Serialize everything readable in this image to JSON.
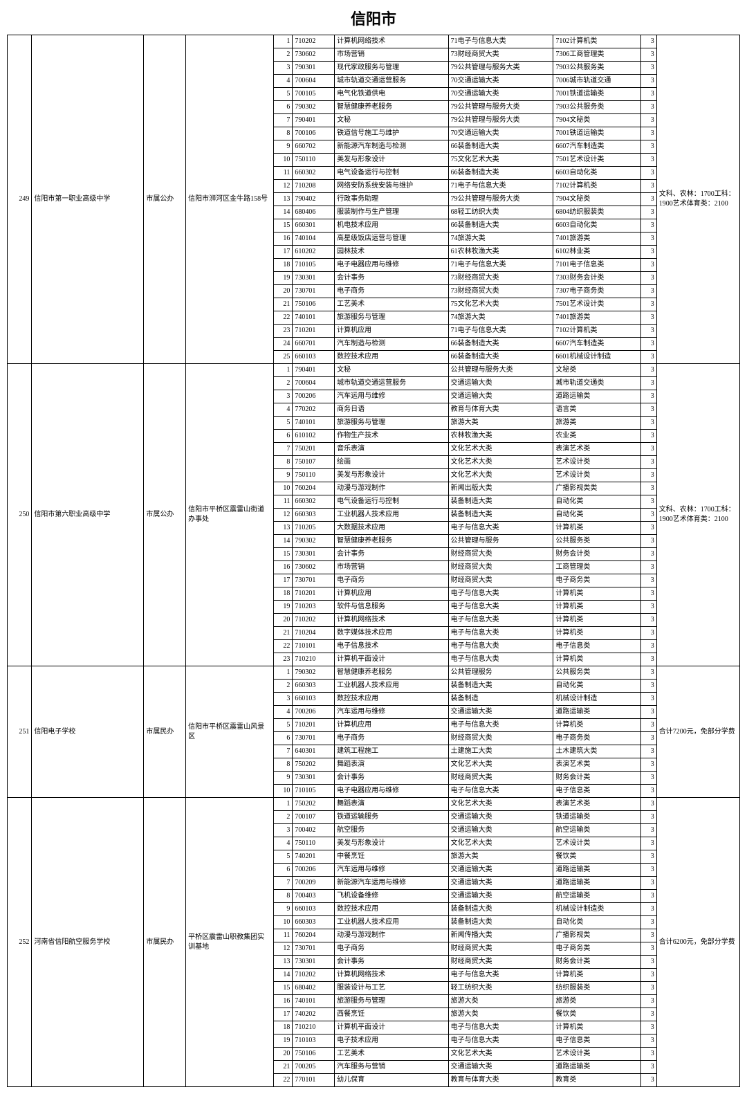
{
  "title": "信阳市",
  "schools": [
    {
      "idx": "249",
      "name": "信阳市第一职业高级中学",
      "type": "市属公办",
      "address": "信阳市浉河区金牛路158号",
      "notes": "文科、农林：1700工科：1900艺术体育类：2100",
      "rows": [
        [
          "1",
          "710202",
          "计算机网络技术",
          "71电子与信息大类",
          "7102计算机类",
          "3"
        ],
        [
          "2",
          "730602",
          "市场营销",
          "73财经商贸大类",
          "7306工商管理类",
          "3"
        ],
        [
          "3",
          "790301",
          "现代家政服务与管理",
          "79公共管理与服务大类",
          "7903公共服务类",
          "3"
        ],
        [
          "4",
          "700604",
          "城市轨道交通运营服务",
          "70交通运输大类",
          "7006城市轨道交通",
          "3"
        ],
        [
          "5",
          "700105",
          "电气化铁道供电",
          "70交通运输大类",
          "7001铁道运输类",
          "3"
        ],
        [
          "6",
          "790302",
          "智慧健康养老服务",
          "79公共管理与服务大类",
          "7903公共服务类",
          "3"
        ],
        [
          "7",
          "790401",
          "文秘",
          "79公共管理与服务大类",
          "7904文秘类",
          "3"
        ],
        [
          "8",
          "700106",
          "铁道信号施工与维护",
          "70交通运输大类",
          "7001铁道运输类",
          "3"
        ],
        [
          "9",
          "660702",
          "新能源汽车制造与检测",
          "66装备制造大类",
          "6607汽车制造类",
          "3"
        ],
        [
          "10",
          "750110",
          "美发与形象设计",
          "75文化艺术大类",
          "7501艺术设计类",
          "3"
        ],
        [
          "11",
          "660302",
          "电气设备运行与控制",
          "66装备制造大类",
          "6603自动化类",
          "3"
        ],
        [
          "12",
          "710208",
          "网络安防系统安装与维护",
          "71电子与信息大类",
          "7102计算机类",
          "3"
        ],
        [
          "13",
          "790402",
          "行政事务助理",
          "79公共管理与服务大类",
          "7904文秘类",
          "3"
        ],
        [
          "14",
          "680406",
          "服装制作与生产管理",
          "68轻工纺织大类",
          "6804纺织服装类",
          "3"
        ],
        [
          "15",
          "660301",
          "机电技术应用",
          "66装备制造大类",
          "6603自动化类",
          "3"
        ],
        [
          "16",
          "740104",
          "高星级饭店运营与管理",
          "74旅游大类",
          "7401旅游类",
          "3"
        ],
        [
          "17",
          "610202",
          "园林技术",
          "61农林牧渔大类",
          "6102林业类",
          "3"
        ],
        [
          "18",
          "710105",
          "电子电器应用与维修",
          "71电子与信息大类",
          "7101电子信息类",
          "3"
        ],
        [
          "19",
          "730301",
          "会计事务",
          "73财经商贸大类",
          "7303财务会计类",
          "3"
        ],
        [
          "20",
          "730701",
          "电子商务",
          "73财经商贸大类",
          "7307电子商务类",
          "3"
        ],
        [
          "21",
          "750106",
          "工艺美术",
          "75文化艺术大类",
          "7501艺术设计类",
          "3"
        ],
        [
          "22",
          "740101",
          "旅游服务与管理",
          "74旅游大类",
          "7401旅游类",
          "3"
        ],
        [
          "23",
          "710201",
          "计算机应用",
          "71电子与信息大类",
          "7102计算机类",
          "3"
        ],
        [
          "24",
          "660701",
          "汽车制造与检测",
          "66装备制造大类",
          "6607汽车制造类",
          "3"
        ],
        [
          "25",
          "660103",
          "数控技术应用",
          "66装备制造大类",
          "6601机械设计制造",
          "3"
        ]
      ]
    },
    {
      "idx": "250",
      "name": "信阳市第六职业高级中学",
      "type": "市属公办",
      "address": "信阳市平桥区震雷山街道办事处",
      "notes": "文科、农林：1700工科：1900艺术体育类：2100",
      "rows": [
        [
          "1",
          "790401",
          "文秘",
          "公共管理与服务大类",
          "文秘类",
          "3"
        ],
        [
          "2",
          "700604",
          "城市轨道交通运营服务",
          "交通运输大类",
          "城市轨道交通类",
          "3"
        ],
        [
          "3",
          "700206",
          "汽车运用与维修",
          "交通运输大类",
          "道路运输类",
          "3"
        ],
        [
          "4",
          "770202",
          "商务日语",
          "教育与体育大类",
          "语言类",
          "3"
        ],
        [
          "5",
          "740101",
          "旅游服务与管理",
          "旅游大类",
          "旅游类",
          "3"
        ],
        [
          "6",
          "610102",
          "作物生产技术",
          "农林牧渔大类",
          "农业类",
          "3"
        ],
        [
          "7",
          "750201",
          "音乐表演",
          "文化艺术大类",
          "表演艺术类",
          "3"
        ],
        [
          "8",
          "750107",
          "绘画",
          "文化艺术大类",
          "艺术设计类",
          "3"
        ],
        [
          "9",
          "750110",
          "美发与形象设计",
          "文化艺术大类",
          "艺术设计类",
          "3"
        ],
        [
          "10",
          "760204",
          "动漫与游戏制作",
          "新闻出版大类",
          "广播影视类类",
          "3"
        ],
        [
          "11",
          "660302",
          "电气设备运行与控制",
          "装备制造大类",
          "自动化类",
          "3"
        ],
        [
          "12",
          "660303",
          "工业机器人技术应用",
          "装备制造大类",
          "自动化类",
          "3"
        ],
        [
          "13",
          "710205",
          "大数据技术应用",
          "电子与信息大类",
          "计算机类",
          "3"
        ],
        [
          "14",
          "790302",
          "智慧健康养老服务",
          "公共管理与服务",
          "公共服务类",
          "3"
        ],
        [
          "15",
          "730301",
          "会计事务",
          "财经商贸大类",
          "财务会计类",
          "3"
        ],
        [
          "16",
          "730602",
          "市场营销",
          "财经商贸大类",
          "工商管理类",
          "3"
        ],
        [
          "17",
          "730701",
          "电子商务",
          "财经商贸大类",
          "电子商务类",
          "3"
        ],
        [
          "18",
          "710201",
          "计算机应用",
          "电子与信息大类",
          "计算机类",
          "3"
        ],
        [
          "19",
          "710203",
          "软件与信息服务",
          "电子与信息大类",
          "计算机类",
          "3"
        ],
        [
          "20",
          "710202",
          "计算机网络技术",
          "电子与信息大类",
          "计算机类",
          "3"
        ],
        [
          "21",
          "710204",
          "数字媒体技术应用",
          "电子与信息大类",
          "计算机类",
          "3"
        ],
        [
          "22",
          "710101",
          "电子信息技术",
          "电子与信息大类",
          "电子信息类",
          "3"
        ],
        [
          "23",
          "710210",
          "计算机平面设计",
          "电子与信息大类",
          "计算机类",
          "3"
        ]
      ]
    },
    {
      "idx": "251",
      "name": "信阳电子学校",
      "type": "市属民办",
      "address": "信阳市平桥区震雷山风景区",
      "notes": "合计7200元，免部分学费",
      "rows": [
        [
          "1",
          "790302",
          "智慧健康养老服务",
          "公共管理服务",
          "公共服务类",
          "3"
        ],
        [
          "2",
          "660303",
          "工业机器人技术应用",
          "装备制造大类",
          "自动化类",
          "3"
        ],
        [
          "3",
          "660103",
          "数控技术应用",
          "装备制造",
          "机械设计制造",
          "3"
        ],
        [
          "4",
          "700206",
          "汽车运用与维修",
          "交通运输大类",
          "道路运输类",
          "3"
        ],
        [
          "5",
          "710201",
          "计算机应用",
          "电子与信息大类",
          "计算机类",
          "3"
        ],
        [
          "6",
          "730701",
          "电子商务",
          "财经商贸大类",
          "电子商务类",
          "3"
        ],
        [
          "7",
          "640301",
          "建筑工程施工",
          "土建施工大类",
          "土木建筑大类",
          "3"
        ],
        [
          "8",
          "750202",
          "舞蹈表演",
          "文化艺术大类",
          "表演艺术类",
          "3"
        ],
        [
          "9",
          "730301",
          "会计事务",
          "财经商贸大类",
          "财务会计类",
          "3"
        ],
        [
          "10",
          "710105",
          "电子电器应用与维修",
          "电子与信息大类",
          "电子信息类",
          "3"
        ]
      ]
    },
    {
      "idx": "252",
      "name": "河南省信阳航空服务学校",
      "type": "市属民办",
      "address": "平桥区震雷山职教集团实训基地",
      "notes": "合计6200元，免部分学费",
      "rows": [
        [
          "1",
          "750202",
          "舞蹈表演",
          "文化艺术大类",
          "表演艺术类",
          "3"
        ],
        [
          "2",
          "700107",
          "铁道运输服务",
          "交通运输大类",
          "铁道运输类",
          "3"
        ],
        [
          "3",
          "700402",
          "航空服务",
          "交通运输大类",
          "航空运输类",
          "3"
        ],
        [
          "4",
          "750110",
          "美发与形象设计",
          "文化艺术大类",
          "艺术设计类",
          "3"
        ],
        [
          "5",
          "740201",
          "中餐烹饪",
          "旅游大类",
          "餐饮类",
          "3"
        ],
        [
          "6",
          "700206",
          "汽车运用与维修",
          "交通运输大类",
          "道路运输类",
          "3"
        ],
        [
          "7",
          "700209",
          "新能源汽车运用与维修",
          "交通运输大类",
          "道路运输类",
          "3"
        ],
        [
          "8",
          "700403",
          "飞机设备维修",
          "交通运输大类",
          "航空运输类",
          "3"
        ],
        [
          "9",
          "660103",
          "数控技术应用",
          "装备制造大类",
          "机械设计制造类",
          "3"
        ],
        [
          "10",
          "660303",
          "工业机器人技术应用",
          "装备制造大类",
          "自动化类",
          "3"
        ],
        [
          "11",
          "760204",
          "动漫与游戏制作",
          "新闻传播大类",
          "广播影视类",
          "3"
        ],
        [
          "12",
          "730701",
          "电子商务",
          "财经商贸大类",
          "电子商务类",
          "3"
        ],
        [
          "13",
          "730301",
          "会计事务",
          "财经商贸大类",
          "财务会计类",
          "3"
        ],
        [
          "14",
          "710202",
          "计算机网络技术",
          "电子与信息大类",
          "计算机类",
          "3"
        ],
        [
          "15",
          "680402",
          "服装设计与工艺",
          "轻工纺织大类",
          "纺织服装类",
          "3"
        ],
        [
          "16",
          "740101",
          "旅游服务与管理",
          "旅游大类",
          "旅游类",
          "3"
        ],
        [
          "17",
          "740202",
          "西餐烹饪",
          "旅游大类",
          "餐饮类",
          "3"
        ],
        [
          "18",
          "710210",
          "计算机平面设计",
          "电子与信息大类",
          "计算机类",
          "3"
        ],
        [
          "19",
          "710103",
          "电子技术应用",
          "电子与信息大类",
          "电子信息类",
          "3"
        ],
        [
          "20",
          "750106",
          "工艺美术",
          "文化艺术大类",
          "艺术设计类",
          "3"
        ],
        [
          "21",
          "700205",
          "汽车服务与营销",
          "交通运输大类",
          "道路运输类",
          "3"
        ],
        [
          "22",
          "770101",
          "幼儿保育",
          "教育与体育大类",
          "教育类",
          "3"
        ]
      ]
    }
  ]
}
